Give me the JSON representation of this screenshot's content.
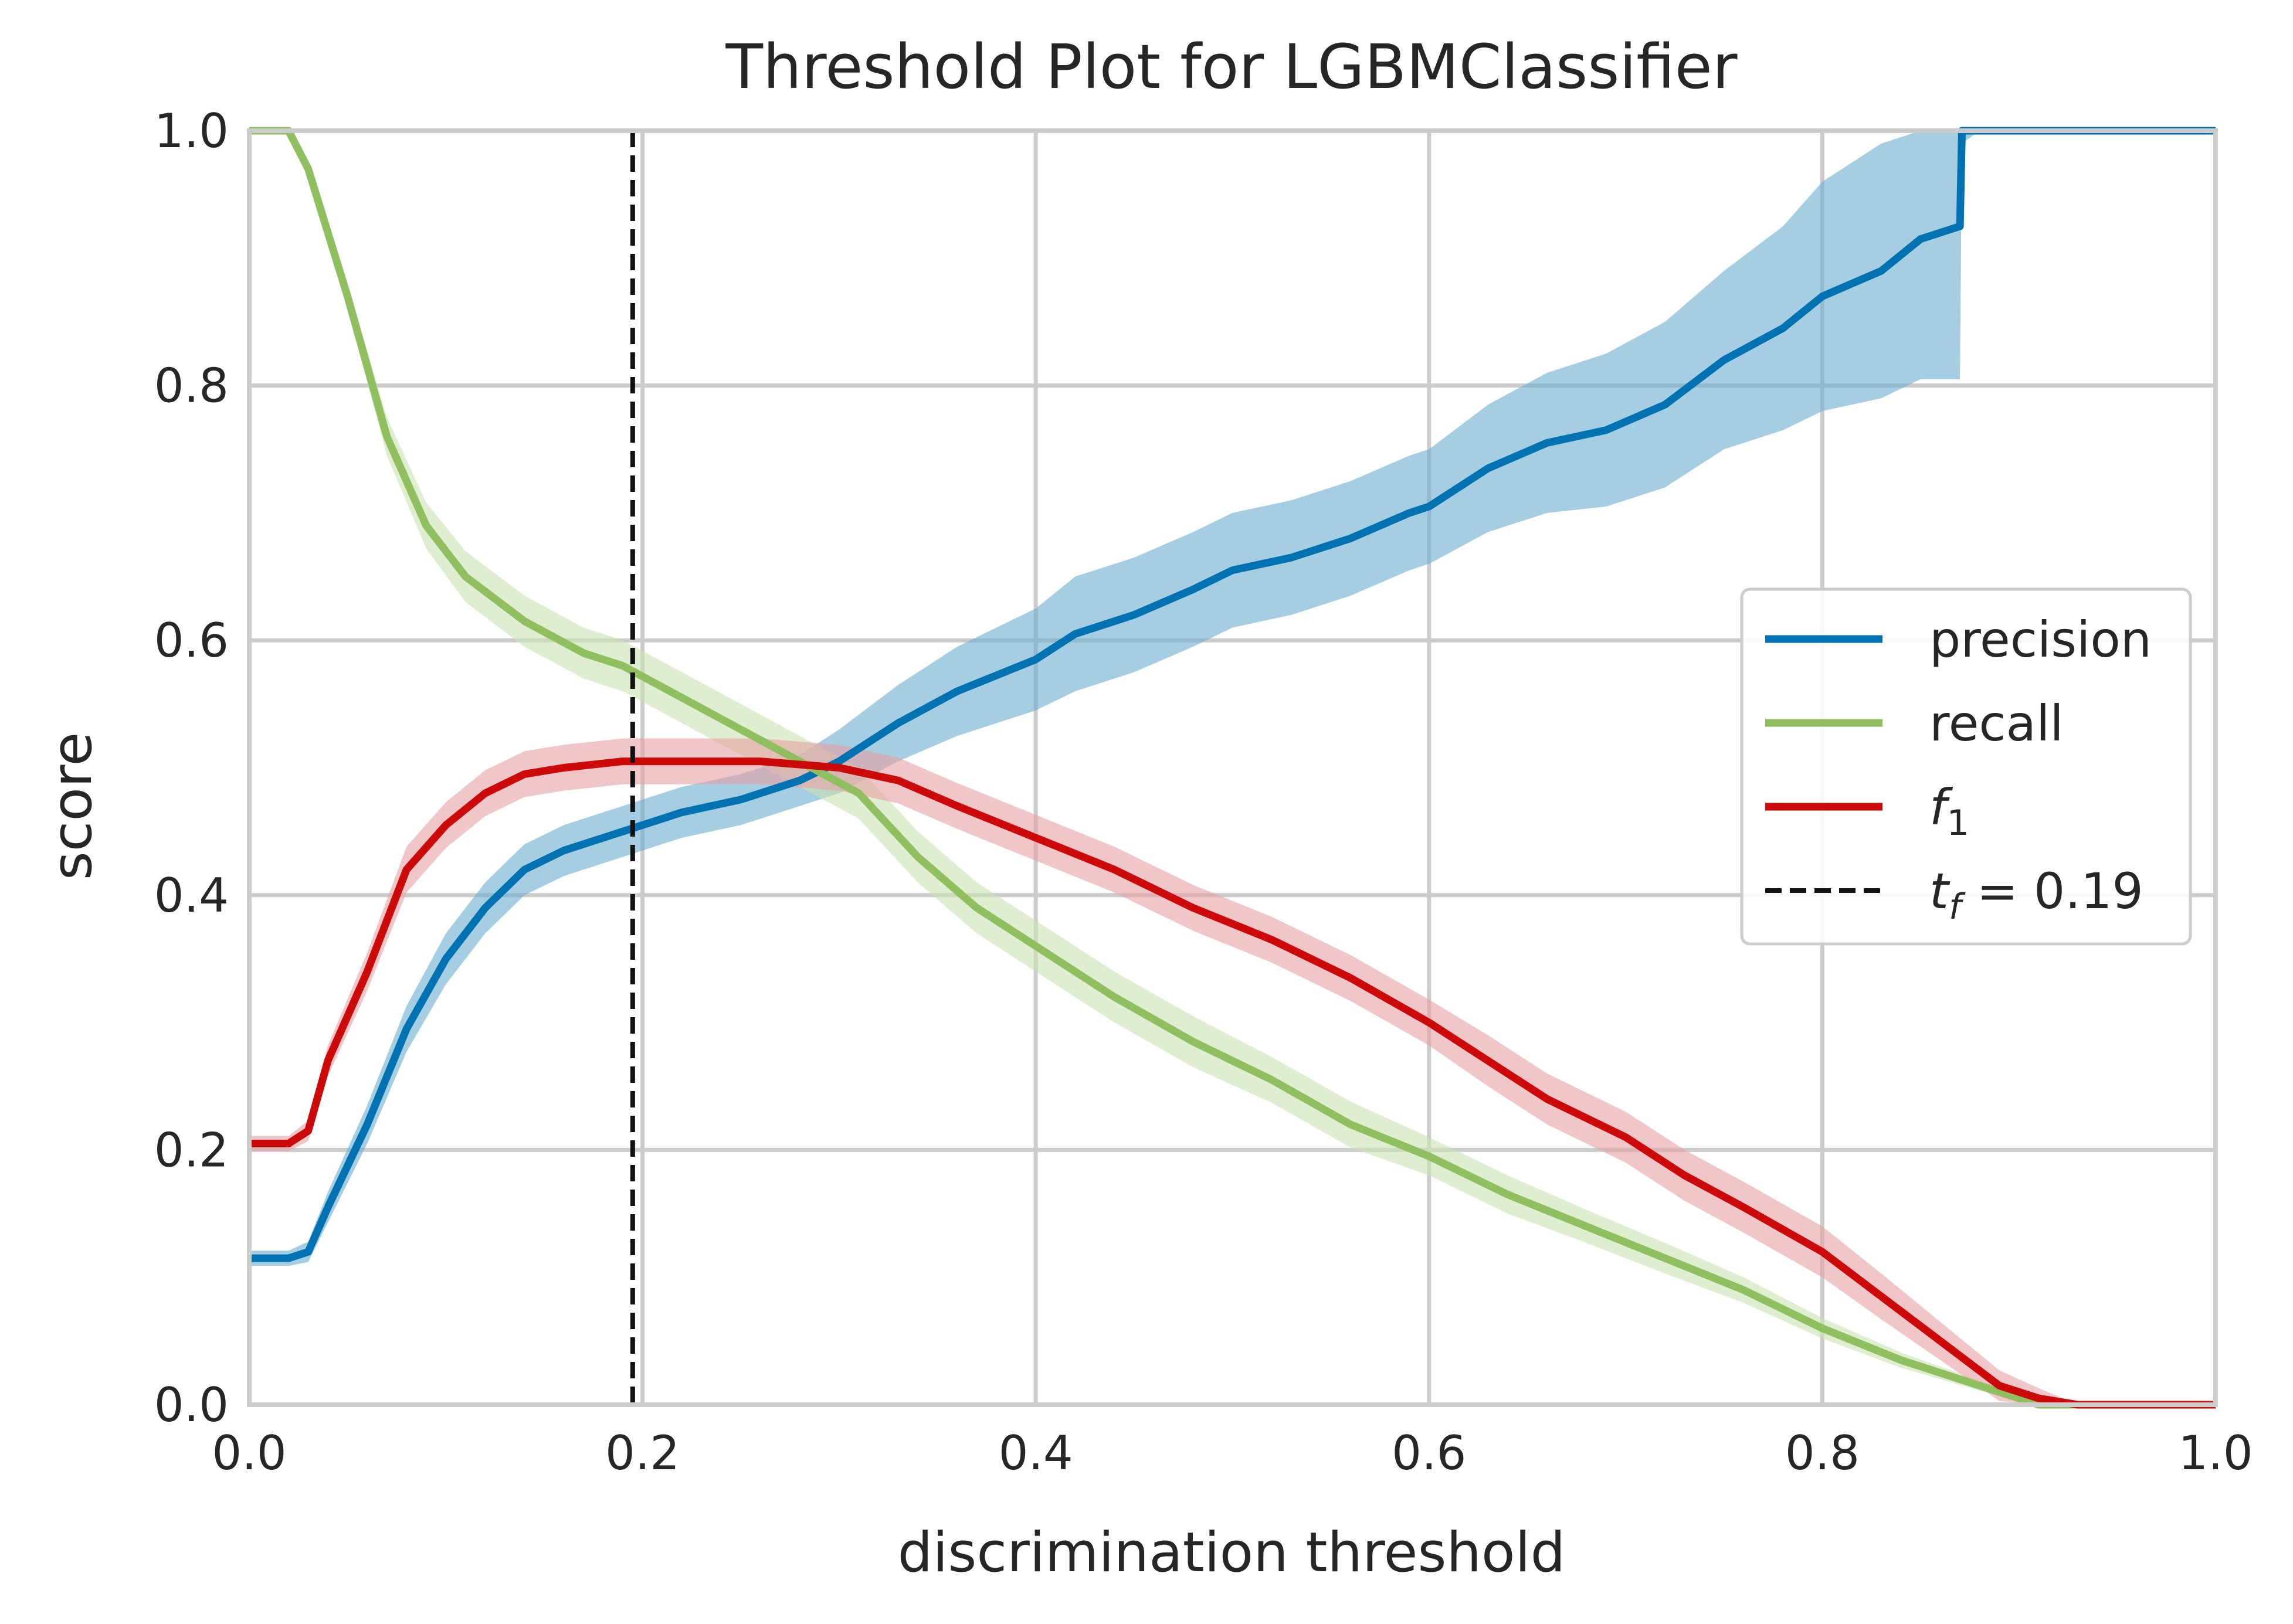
{
  "chart_data": {
    "type": "line",
    "title": "Threshold Plot for LGBMClassifier",
    "xlabel": "discrimination threshold",
    "ylabel": "score",
    "xlim": [
      0.0,
      1.0
    ],
    "ylim": [
      0.0,
      1.0
    ],
    "x_ticks": [
      "0.0",
      "0.2",
      "0.4",
      "0.6",
      "0.8",
      "1.0"
    ],
    "y_ticks": [
      "0.0",
      "0.2",
      "0.4",
      "0.6",
      "0.8",
      "1.0"
    ],
    "grid": true,
    "legend_position": "center-right",
    "series": [
      {
        "key": "precision",
        "name": "precision",
        "color": "#0072b2",
        "band_color": "#6aaed0",
        "x": [
          0.0,
          0.02,
          0.03,
          0.04,
          0.06,
          0.08,
          0.1,
          0.12,
          0.14,
          0.16,
          0.18,
          0.19,
          0.22,
          0.25,
          0.28,
          0.3,
          0.33,
          0.36,
          0.4,
          0.42,
          0.45,
          0.48,
          0.5,
          0.53,
          0.56,
          0.59,
          0.6,
          0.63,
          0.66,
          0.69,
          0.72,
          0.75,
          0.78,
          0.8,
          0.83,
          0.85,
          0.87,
          0.871,
          0.88,
          1.0
        ],
        "y": [
          0.115,
          0.115,
          0.12,
          0.155,
          0.22,
          0.295,
          0.35,
          0.39,
          0.42,
          0.435,
          0.445,
          0.45,
          0.465,
          0.475,
          0.49,
          0.505,
          0.535,
          0.56,
          0.585,
          0.605,
          0.62,
          0.64,
          0.655,
          0.665,
          0.68,
          0.7,
          0.705,
          0.735,
          0.755,
          0.765,
          0.785,
          0.82,
          0.845,
          0.87,
          0.89,
          0.915,
          0.925,
          1.0,
          1.0,
          1.0
        ],
        "band_half_width": [
          0.006,
          0.006,
          0.008,
          0.012,
          0.015,
          0.018,
          0.02,
          0.02,
          0.02,
          0.02,
          0.02,
          0.02,
          0.02,
          0.02,
          0.02,
          0.025,
          0.03,
          0.035,
          0.04,
          0.045,
          0.045,
          0.045,
          0.045,
          0.045,
          0.045,
          0.045,
          0.045,
          0.05,
          0.055,
          0.06,
          0.065,
          0.07,
          0.08,
          0.09,
          0.1,
          0.11,
          0.12,
          0.01,
          0.0,
          0.0
        ]
      },
      {
        "key": "recall",
        "name": "recall",
        "color": "#8fbf5f",
        "band_color": "#c9e1b3",
        "x": [
          0.0,
          0.02,
          0.03,
          0.05,
          0.07,
          0.09,
          0.11,
          0.14,
          0.17,
          0.19,
          0.22,
          0.25,
          0.28,
          0.31,
          0.34,
          0.37,
          0.4,
          0.44,
          0.48,
          0.52,
          0.56,
          0.6,
          0.64,
          0.68,
          0.72,
          0.76,
          0.8,
          0.84,
          0.88,
          0.91,
          1.0
        ],
        "y": [
          1.0,
          1.0,
          0.97,
          0.87,
          0.76,
          0.69,
          0.65,
          0.615,
          0.59,
          0.58,
          0.555,
          0.53,
          0.505,
          0.48,
          0.43,
          0.39,
          0.36,
          0.32,
          0.285,
          0.255,
          0.22,
          0.195,
          0.165,
          0.14,
          0.115,
          0.09,
          0.06,
          0.035,
          0.015,
          0.0,
          0.0
        ],
        "band_half_width": [
          0.0,
          0.0,
          0.005,
          0.01,
          0.015,
          0.018,
          0.02,
          0.02,
          0.02,
          0.02,
          0.02,
          0.02,
          0.02,
          0.02,
          0.02,
          0.02,
          0.02,
          0.02,
          0.02,
          0.018,
          0.018,
          0.015,
          0.015,
          0.013,
          0.012,
          0.01,
          0.008,
          0.006,
          0.004,
          0.0,
          0.0
        ]
      },
      {
        "key": "f1",
        "name": "f1",
        "color": "#cc0a0a",
        "band_color": "#e8a0a3",
        "x": [
          0.0,
          0.02,
          0.03,
          0.04,
          0.06,
          0.08,
          0.1,
          0.12,
          0.14,
          0.16,
          0.19,
          0.22,
          0.26,
          0.3,
          0.33,
          0.36,
          0.4,
          0.44,
          0.48,
          0.52,
          0.56,
          0.6,
          0.63,
          0.66,
          0.7,
          0.73,
          0.76,
          0.8,
          0.83,
          0.86,
          0.89,
          0.91,
          0.93,
          1.0
        ],
        "y": [
          0.205,
          0.205,
          0.215,
          0.27,
          0.34,
          0.42,
          0.455,
          0.48,
          0.495,
          0.5,
          0.505,
          0.505,
          0.505,
          0.5,
          0.49,
          0.47,
          0.445,
          0.42,
          0.39,
          0.365,
          0.335,
          0.3,
          0.27,
          0.24,
          0.21,
          0.18,
          0.155,
          0.12,
          0.085,
          0.05,
          0.015,
          0.005,
          0.0,
          0.0
        ],
        "band_half_width": [
          0.006,
          0.006,
          0.008,
          0.012,
          0.015,
          0.018,
          0.018,
          0.018,
          0.018,
          0.018,
          0.018,
          0.018,
          0.018,
          0.018,
          0.018,
          0.018,
          0.018,
          0.018,
          0.018,
          0.018,
          0.018,
          0.018,
          0.02,
          0.02,
          0.02,
          0.02,
          0.02,
          0.02,
          0.018,
          0.015,
          0.012,
          0.008,
          0.0,
          0.0
        ]
      }
    ],
    "threshold": {
      "x": 0.195,
      "label": "t_f = 0.19",
      "color": "#111111"
    },
    "legend": [
      {
        "label": "precision",
        "series": "precision"
      },
      {
        "label": "recall",
        "series": "recall"
      },
      {
        "label": "f",
        "sub": "1",
        "series": "f1"
      },
      {
        "label": "t",
        "sub": "f",
        "suffix": " = 0.19",
        "series": "threshold"
      }
    ]
  }
}
